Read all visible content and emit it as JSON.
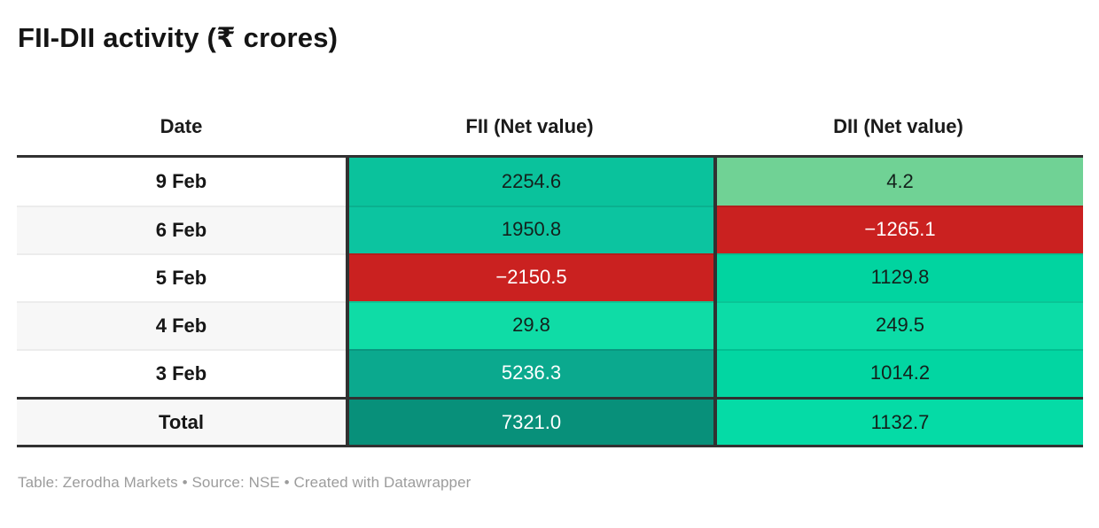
{
  "title": "FII-DII activity (₹ crores)",
  "table": {
    "columns": [
      "Date",
      "FII (Net value)",
      "DII (Net value)"
    ],
    "rows": [
      {
        "date": "9 Feb",
        "fii": {
          "value": "2254.6",
          "bg": "#0ac29c",
          "color": "#13211c"
        },
        "dii": {
          "value": "4.2",
          "bg": "#70d295",
          "color": "#13211c"
        }
      },
      {
        "date": "6 Feb",
        "fii": {
          "value": "1950.8",
          "bg": "#0cc4a0",
          "color": "#13211c"
        },
        "dii": {
          "value": "−1265.1",
          "bg": "#ca2120",
          "color": "#ffffff"
        }
      },
      {
        "date": "5 Feb",
        "fii": {
          "value": "−2150.5",
          "bg": "#ca2120",
          "color": "#ffffff"
        },
        "dii": {
          "value": "1129.8",
          "bg": "#01d4a0",
          "color": "#13211c"
        }
      },
      {
        "date": "4 Feb",
        "fii": {
          "value": "29.8",
          "bg": "#0fdca6",
          "color": "#13211c"
        },
        "dii": {
          "value": "249.5",
          "bg": "#0cdca7",
          "color": "#13211c"
        }
      },
      {
        "date": "3 Feb",
        "fii": {
          "value": "5236.3",
          "bg": "#0ba98e",
          "color": "#ffffff"
        },
        "dii": {
          "value": "1014.2",
          "bg": "#02d6a2",
          "color": "#13211c"
        }
      }
    ],
    "total": {
      "label": "Total",
      "fii": {
        "value": "7321.0",
        "bg": "#08907a",
        "color": "#ffffff"
      },
      "dii": {
        "value": "1132.7",
        "bg": "#05dba6",
        "color": "#13211c"
      }
    }
  },
  "footer": "Table: Zerodha Markets • Source: NSE • Created with Datawrapper",
  "chart_data": {
    "type": "table",
    "title": "FII-DII activity (₹ crores)",
    "columns": [
      "Date",
      "FII (Net value)",
      "DII (Net value)"
    ],
    "categories": [
      "9 Feb",
      "6 Feb",
      "5 Feb",
      "4 Feb",
      "3 Feb",
      "Total"
    ],
    "series": [
      {
        "name": "FII (Net value)",
        "values": [
          2254.6,
          1950.8,
          -2150.5,
          29.8,
          5236.3,
          7321.0
        ]
      },
      {
        "name": "DII (Net value)",
        "values": [
          4.2,
          -1265.1,
          1129.8,
          249.5,
          1014.2,
          1132.7
        ]
      }
    ],
    "legend_position": "none",
    "notes": "negative values shaded red, positive values shaded green heatmap"
  }
}
